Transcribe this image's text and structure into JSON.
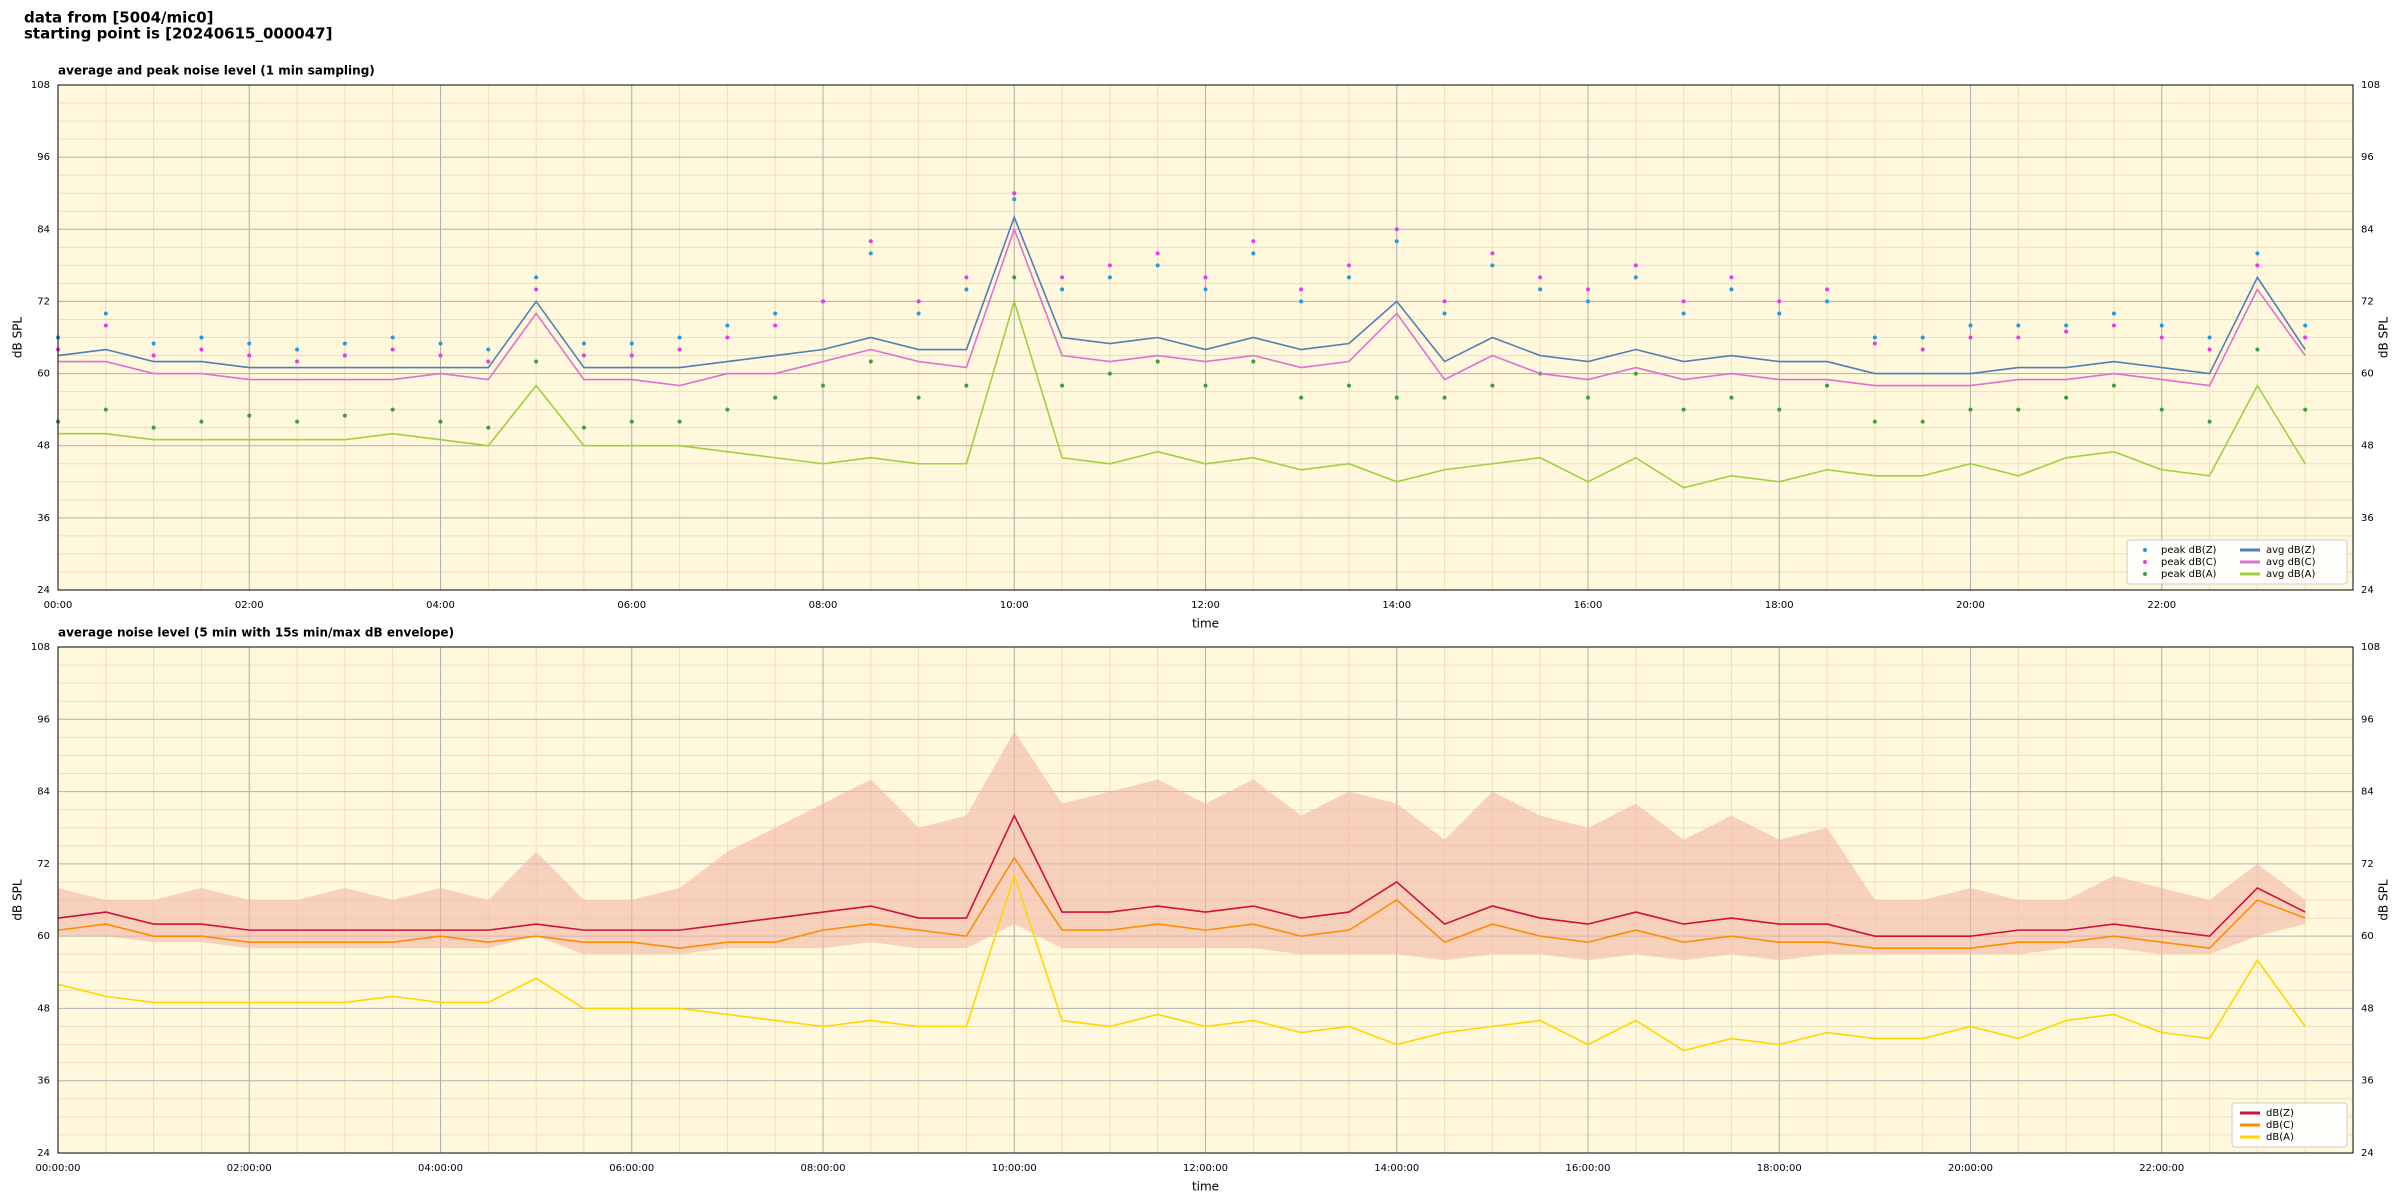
{
  "header": {
    "line1": "data from [5004/mic0]",
    "line2": "starting point is [20240615_000047]"
  },
  "chart_data": [
    {
      "type": "line",
      "title": "average and peak noise level (1 min sampling)",
      "x_label": "time",
      "y_label": "dB SPL",
      "xlim": [
        "00:00",
        "24:00"
      ],
      "xticks": [
        "00:00",
        "02:00",
        "04:00",
        "06:00",
        "08:00",
        "10:00",
        "12:00",
        "14:00",
        "16:00",
        "18:00",
        "20:00",
        "22:00"
      ],
      "ylim": [
        24,
        108
      ],
      "yticks": [
        24,
        36,
        48,
        60,
        72,
        84,
        96,
        108
      ],
      "grid": true,
      "legend": "lower right",
      "x": [
        "00:00",
        "00:30",
        "01:00",
        "01:30",
        "02:00",
        "02:30",
        "03:00",
        "03:30",
        "04:00",
        "04:30",
        "05:00",
        "05:30",
        "06:00",
        "06:30",
        "07:00",
        "07:30",
        "08:00",
        "08:30",
        "09:00",
        "09:30",
        "10:00",
        "10:30",
        "11:00",
        "11:30",
        "12:00",
        "12:30",
        "13:00",
        "13:30",
        "14:00",
        "14:30",
        "15:00",
        "15:30",
        "16:00",
        "16:30",
        "17:00",
        "17:30",
        "18:00",
        "18:30",
        "19:00",
        "19:30",
        "20:00",
        "20:30",
        "21:00",
        "21:30",
        "22:00",
        "22:30",
        "23:00",
        "23:30"
      ],
      "series": [
        {
          "name": "peak dB(Z)",
          "type": "scatter",
          "color": "#2a9ad4",
          "values": [
            66,
            70,
            65,
            66,
            65,
            64,
            65,
            66,
            65,
            64,
            76,
            65,
            65,
            66,
            68,
            70,
            72,
            80,
            70,
            74,
            89,
            74,
            76,
            78,
            74,
            80,
            72,
            76,
            82,
            70,
            78,
            74,
            72,
            76,
            70,
            74,
            70,
            72,
            66,
            66,
            68,
            68,
            68,
            70,
            68,
            66,
            80,
            68
          ]
        },
        {
          "name": "peak dB(C)",
          "type": "scatter",
          "color": "#e040e0",
          "values": [
            64,
            68,
            63,
            64,
            63,
            62,
            63,
            64,
            63,
            62,
            74,
            63,
            63,
            64,
            66,
            68,
            72,
            82,
            72,
            76,
            90,
            76,
            78,
            80,
            76,
            82,
            74,
            78,
            84,
            72,
            80,
            76,
            74,
            78,
            72,
            76,
            72,
            74,
            65,
            64,
            66,
            66,
            67,
            68,
            66,
            64,
            78,
            66
          ]
        },
        {
          "name": "peak dB(A)",
          "type": "scatter",
          "color": "#3aa040",
          "values": [
            52,
            54,
            51,
            52,
            53,
            52,
            53,
            54,
            52,
            51,
            62,
            51,
            52,
            52,
            54,
            56,
            58,
            62,
            56,
            58,
            76,
            58,
            60,
            62,
            58,
            62,
            56,
            58,
            56,
            56,
            58,
            60,
            56,
            60,
            54,
            56,
            54,
            58,
            52,
            52,
            54,
            54,
            56,
            58,
            54,
            52,
            64,
            54
          ]
        },
        {
          "name": "avg dB(Z)",
          "type": "line",
          "color": "#4f7fb5",
          "values": [
            63,
            64,
            62,
            62,
            61,
            61,
            61,
            61,
            61,
            61,
            72,
            61,
            61,
            61,
            62,
            63,
            64,
            66,
            64,
            64,
            86,
            66,
            65,
            66,
            64,
            66,
            64,
            65,
            72,
            62,
            66,
            63,
            62,
            64,
            62,
            63,
            62,
            62,
            60,
            60,
            60,
            61,
            61,
            62,
            61,
            60,
            76,
            64
          ]
        },
        {
          "name": "avg dB(C)",
          "type": "line",
          "color": "#e070d0",
          "values": [
            62,
            62,
            60,
            60,
            59,
            59,
            59,
            59,
            60,
            59,
            70,
            59,
            59,
            58,
            60,
            60,
            62,
            64,
            62,
            61,
            84,
            63,
            62,
            63,
            62,
            63,
            61,
            62,
            70,
            59,
            63,
            60,
            59,
            61,
            59,
            60,
            59,
            59,
            58,
            58,
            58,
            59,
            59,
            60,
            59,
            58,
            74,
            63
          ]
        },
        {
          "name": "avg dB(A)",
          "type": "line",
          "color": "#a0d040",
          "values": [
            50,
            50,
            49,
            49,
            49,
            49,
            49,
            50,
            49,
            48,
            58,
            48,
            48,
            48,
            47,
            46,
            45,
            46,
            45,
            45,
            72,
            46,
            45,
            47,
            45,
            46,
            44,
            45,
            42,
            44,
            45,
            46,
            42,
            46,
            41,
            43,
            42,
            44,
            43,
            43,
            45,
            43,
            46,
            47,
            44,
            43,
            58,
            45
          ]
        }
      ]
    },
    {
      "type": "line",
      "title": "average noise level (5 min with 15s min/max dB envelope)",
      "x_label": "time",
      "y_label": "dB SPL",
      "xlim": [
        "00:00",
        "24:00"
      ],
      "xticks": [
        "00:00:00",
        "02:00:00",
        "04:00:00",
        "06:00:00",
        "08:00:00",
        "10:00:00",
        "12:00:00",
        "14:00:00",
        "16:00:00",
        "18:00:00",
        "20:00:00",
        "22:00:00"
      ],
      "ylim": [
        24,
        108
      ],
      "yticks": [
        24,
        36,
        48,
        60,
        72,
        84,
        96,
        108
      ],
      "grid": true,
      "legend": "lower right",
      "x": [
        "00:00",
        "00:30",
        "01:00",
        "01:30",
        "02:00",
        "02:30",
        "03:00",
        "03:30",
        "04:00",
        "04:30",
        "05:00",
        "05:30",
        "06:00",
        "06:30",
        "07:00",
        "07:30",
        "08:00",
        "08:30",
        "09:00",
        "09:30",
        "10:00",
        "10:30",
        "11:00",
        "11:30",
        "12:00",
        "12:30",
        "13:00",
        "13:30",
        "14:00",
        "14:30",
        "15:00",
        "15:30",
        "16:00",
        "16:30",
        "17:00",
        "17:30",
        "18:00",
        "18:30",
        "19:00",
        "19:30",
        "20:00",
        "20:30",
        "21:00",
        "21:30",
        "22:00",
        "22:30",
        "23:00",
        "23:30"
      ],
      "envelope": {
        "color": "#f4b8a8",
        "lower": [
          60,
          60,
          59,
          59,
          58,
          58,
          58,
          58,
          58,
          58,
          60,
          57,
          57,
          57,
          58,
          58,
          58,
          59,
          58,
          58,
          62,
          58,
          58,
          58,
          58,
          58,
          57,
          57,
          57,
          56,
          57,
          57,
          56,
          57,
          56,
          57,
          56,
          57,
          57,
          57,
          57,
          57,
          58,
          58,
          57,
          57,
          60,
          62
        ],
        "upper": [
          68,
          66,
          66,
          68,
          66,
          66,
          68,
          66,
          68,
          66,
          74,
          66,
          66,
          68,
          74,
          78,
          82,
          86,
          78,
          80,
          94,
          82,
          84,
          86,
          82,
          86,
          80,
          84,
          82,
          76,
          84,
          80,
          78,
          82,
          76,
          80,
          76,
          78,
          66,
          66,
          68,
          66,
          66,
          70,
          68,
          66,
          72,
          66
        ]
      },
      "series": [
        {
          "name": "dB(Z)",
          "type": "line",
          "color": "#d0103a",
          "values": [
            63,
            64,
            62,
            62,
            61,
            61,
            61,
            61,
            61,
            61,
            62,
            61,
            61,
            61,
            62,
            63,
            64,
            65,
            63,
            63,
            80,
            64,
            64,
            65,
            64,
            65,
            63,
            64,
            69,
            62,
            65,
            63,
            62,
            64,
            62,
            63,
            62,
            62,
            60,
            60,
            60,
            61,
            61,
            62,
            61,
            60,
            68,
            64
          ]
        },
        {
          "name": "dB(C)",
          "type": "line",
          "color": "#ff8c00",
          "values": [
            61,
            62,
            60,
            60,
            59,
            59,
            59,
            59,
            60,
            59,
            60,
            59,
            59,
            58,
            59,
            59,
            61,
            62,
            61,
            60,
            73,
            61,
            61,
            62,
            61,
            62,
            60,
            61,
            66,
            59,
            62,
            60,
            59,
            61,
            59,
            60,
            59,
            59,
            58,
            58,
            58,
            59,
            59,
            60,
            59,
            58,
            66,
            63
          ]
        },
        {
          "name": "dB(A)",
          "type": "line",
          "color": "#ffd700",
          "values": [
            52,
            50,
            49,
            49,
            49,
            49,
            49,
            50,
            49,
            49,
            53,
            48,
            48,
            48,
            47,
            46,
            45,
            46,
            45,
            45,
            70,
            46,
            45,
            47,
            45,
            46,
            44,
            45,
            42,
            44,
            45,
            46,
            42,
            46,
            41,
            43,
            42,
            44,
            43,
            43,
            45,
            43,
            46,
            47,
            44,
            43,
            56,
            45
          ]
        }
      ]
    }
  ]
}
